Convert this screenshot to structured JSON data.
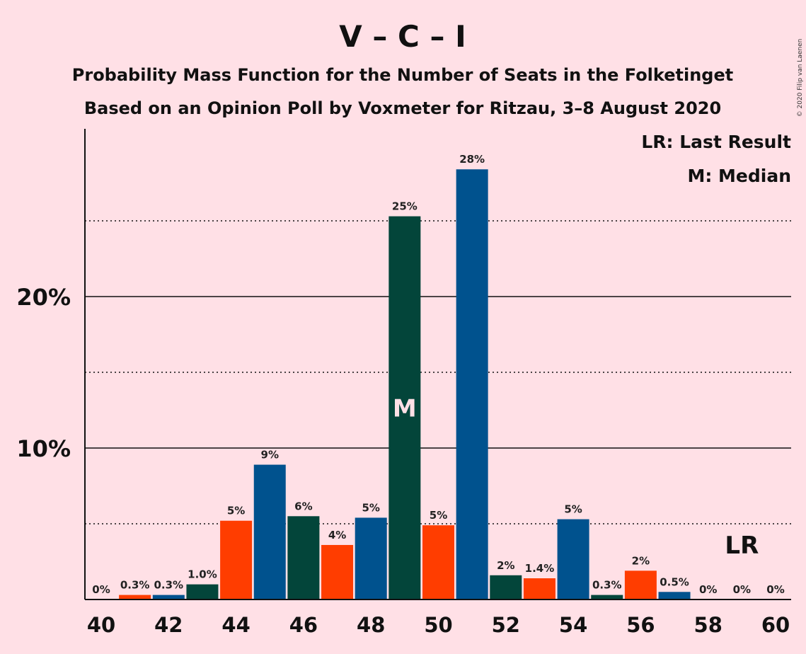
{
  "chart_data": {
    "type": "bar",
    "title": "V – C – I",
    "subtitle_lines": [
      "Probability Mass Function for the Number of Seats in the Folketinget",
      "Based on an Opinion Poll by Voxmeter for Ritzau, 3–8 August 2020"
    ],
    "copyright": "© 2020 Filip van Laenen",
    "legend": [
      "LR: Last Result",
      "M: Median"
    ],
    "legend_position": "top-right",
    "x": [
      40,
      41,
      42,
      43,
      44,
      45,
      46,
      47,
      48,
      49,
      50,
      51,
      52,
      53,
      54,
      55,
      56,
      57,
      58,
      59,
      60
    ],
    "values": [
      0,
      0.3,
      0.3,
      1.0,
      5.2,
      8.9,
      5.5,
      3.6,
      5.4,
      25.3,
      4.9,
      28.4,
      1.6,
      1.4,
      5.3,
      0.3,
      1.9,
      0.5,
      0,
      0,
      0
    ],
    "labels": [
      "0%",
      "0.3%",
      "0.3%",
      "1.0%",
      "5%",
      "9%",
      "6%",
      "4%",
      "5%",
      "25%",
      "5%",
      "28%",
      "2%",
      "1.4%",
      "5%",
      "0.3%",
      "2%",
      "0.5%",
      "0%",
      "0%",
      "0%"
    ],
    "x_tick_labels": [
      "40",
      "42",
      "44",
      "46",
      "48",
      "50",
      "52",
      "54",
      "56",
      "58",
      "60"
    ],
    "y_tick_labels": [
      "10%",
      "20%"
    ],
    "ylim": [
      0,
      31
    ],
    "gridlines_solid": [
      10,
      20
    ],
    "gridlines_dotted": [
      5,
      15,
      25
    ],
    "median_seat": 49,
    "median_label": "M",
    "last_result_seat": 59,
    "last_result_label": "LR",
    "colors": {
      "orange": "#FF3D00",
      "blue": "#00528E",
      "green": "#03453A",
      "background": "#FFE0E6"
    },
    "bar_colors": [
      "#FF3D00",
      "#FF3D00",
      "#00528E",
      "#03453A",
      "#FF3D00",
      "#00528E",
      "#03453A",
      "#FF3D00",
      "#00528E",
      "#03453A",
      "#FF3D00",
      "#00528E",
      "#03453A",
      "#FF3D00",
      "#00528E",
      "#03453A",
      "#FF3D00",
      "#00528E",
      "#03453A",
      "#FF3D00",
      "#00528E"
    ]
  }
}
